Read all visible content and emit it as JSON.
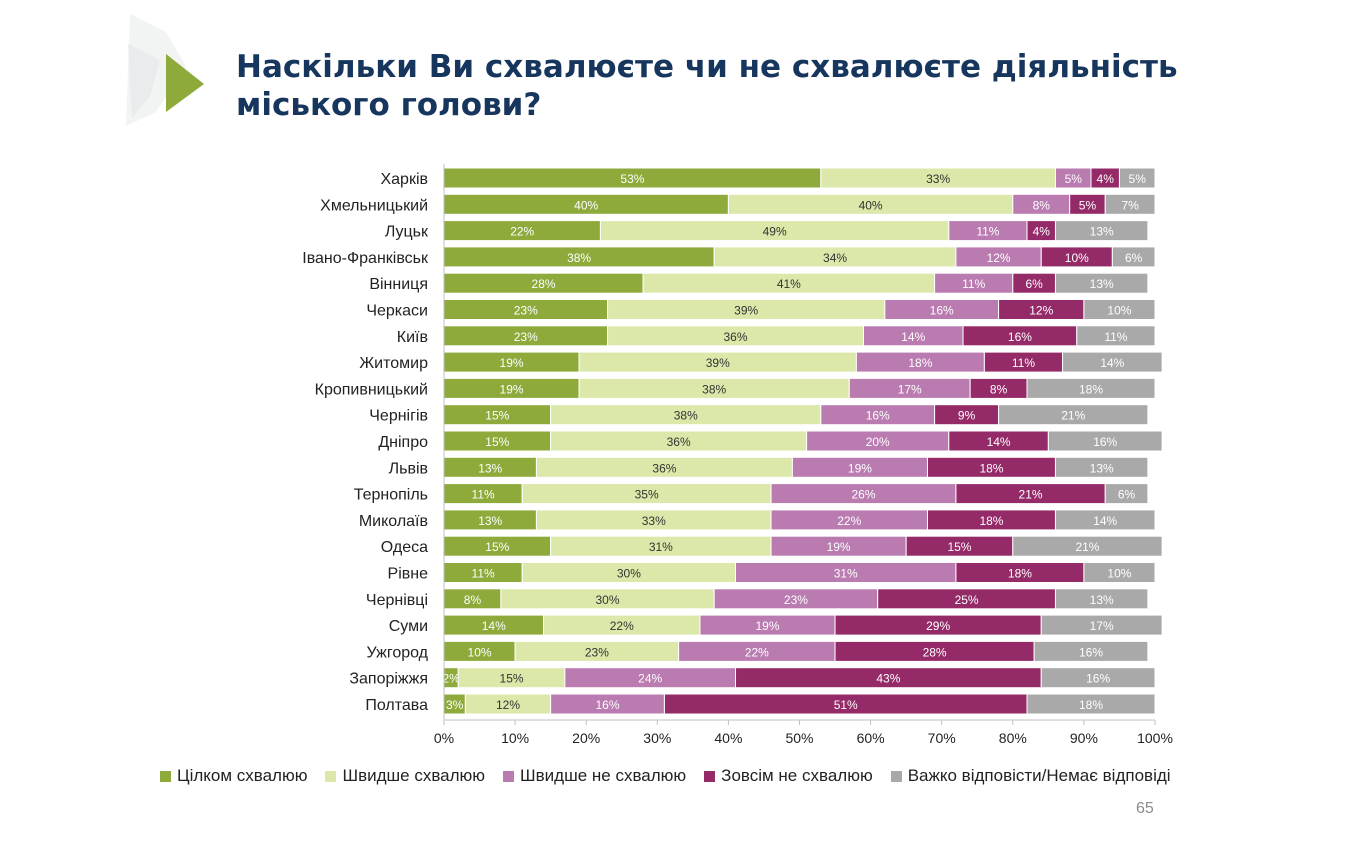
{
  "title": "Наскільки Ви схвалюєте чи не схвалюєте діяльність міського голови?",
  "page_number": "65",
  "colors": [
    "#8daa3b",
    "#dbe8a9",
    "#b97bb0",
    "#952a68",
    "#a9a9a9"
  ],
  "chart_data": {
    "type": "bar",
    "orientation": "horizontal",
    "stacked": true,
    "percent_scale": true,
    "categories": [
      "Харків",
      "Хмельницький",
      "Луцьк",
      "Івано-Франківськ",
      "Вінниця",
      "Черкаси",
      "Київ",
      "Житомир",
      "Кропивницький",
      "Чернігів",
      "Дніпро",
      "Львів",
      "Тернопіль",
      "Миколаїв",
      "Одеса",
      "Рівне",
      "Чернівці",
      "Суми",
      "Ужгород",
      "Запоріжжя",
      "Полтава"
    ],
    "series": [
      {
        "name": "Цілком схвалюю",
        "color": "#8daa3b",
        "label_color": "#ffffff",
        "values": [
          53,
          40,
          22,
          38,
          28,
          23,
          23,
          19,
          19,
          15,
          15,
          13,
          11,
          13,
          15,
          11,
          8,
          14,
          10,
          2,
          3
        ]
      },
      {
        "name": "Швидше схвалюю",
        "color": "#dbe8a9",
        "label_color": "#333333",
        "values": [
          33,
          40,
          49,
          34,
          41,
          39,
          36,
          39,
          38,
          38,
          36,
          36,
          35,
          33,
          31,
          30,
          30,
          22,
          23,
          15,
          12
        ]
      },
      {
        "name": "Швидше не схвалюю",
        "color": "#b97bb0",
        "label_color": "#ffffff",
        "values": [
          5,
          8,
          11,
          12,
          11,
          16,
          14,
          18,
          17,
          16,
          20,
          19,
          26,
          22,
          19,
          31,
          23,
          19,
          22,
          24,
          16
        ]
      },
      {
        "name": "Зовсім не схвалюю",
        "color": "#952a68",
        "label_color": "#ffffff",
        "values": [
          4,
          5,
          4,
          10,
          6,
          12,
          16,
          11,
          8,
          9,
          14,
          18,
          21,
          18,
          15,
          18,
          25,
          29,
          28,
          43,
          51
        ]
      },
      {
        "name": "Важко відповісти/Немає відповіді",
        "color": "#a9a9a9",
        "label_color": "#ffffff",
        "values": [
          5,
          7,
          13,
          6,
          13,
          10,
          11,
          14,
          18,
          21,
          16,
          13,
          6,
          14,
          21,
          10,
          13,
          17,
          16,
          16,
          18
        ]
      }
    ],
    "x_ticks": [
      "0%",
      "10%",
      "20%",
      "30%",
      "40%",
      "50%",
      "60%",
      "70%",
      "80%",
      "90%",
      "100%"
    ],
    "xlim": [
      0,
      100
    ],
    "grid": false,
    "legend_position": "bottom"
  }
}
